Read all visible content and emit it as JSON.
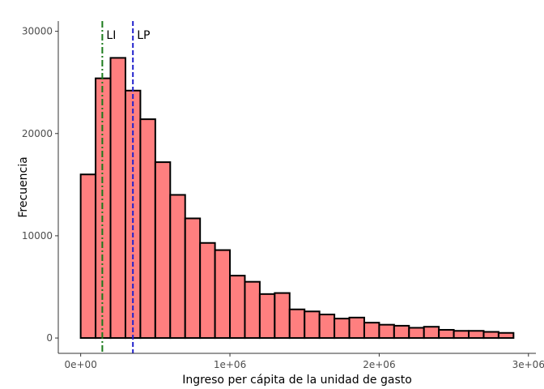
{
  "chart_data": {
    "type": "bar",
    "title": "",
    "xlabel": "Ingreso per cápita de la unidad de gasto",
    "ylabel": "Frecuencia",
    "bin_width": 100000,
    "bin_centers": [
      50000,
      150000,
      250000,
      350000,
      450000,
      550000,
      650000,
      750000,
      850000,
      950000,
      1050000,
      1150000,
      1250000,
      1350000,
      1450000,
      1550000,
      1650000,
      1750000,
      1850000,
      1950000,
      2050000,
      2150000,
      2250000,
      2350000,
      2450000,
      2550000,
      2650000,
      2750000,
      2850000
    ],
    "values": [
      16000,
      25400,
      27400,
      24200,
      21400,
      17200,
      14000,
      11700,
      9300,
      8600,
      6100,
      5500,
      4300,
      4400,
      2800,
      2600,
      2300,
      1900,
      2000,
      1500,
      1300,
      1200,
      1000,
      1100,
      800,
      700,
      700,
      600,
      500
    ],
    "xlim": [
      -150000,
      3050000
    ],
    "ylim": [
      -1500,
      31000
    ],
    "x_ticks": [
      0,
      1000000,
      2000000,
      3000000
    ],
    "x_tick_labels": [
      "0e+00",
      "1e+06",
      "2e+06",
      "3e+06"
    ],
    "y_ticks": [
      0,
      10000,
      20000,
      30000
    ],
    "y_tick_labels": [
      "0",
      "10000",
      "20000",
      "30000"
    ],
    "bar_fill": "#ff7f7f",
    "bar_stroke": "#000000",
    "grid": false,
    "legend": "none",
    "reference_lines": [
      {
        "label": "LI",
        "x": 145000,
        "color": "#1a7a1a",
        "style": "dash-dot"
      },
      {
        "label": "LP",
        "x": 350000,
        "color": "#2222cc",
        "style": "dashed"
      }
    ]
  }
}
